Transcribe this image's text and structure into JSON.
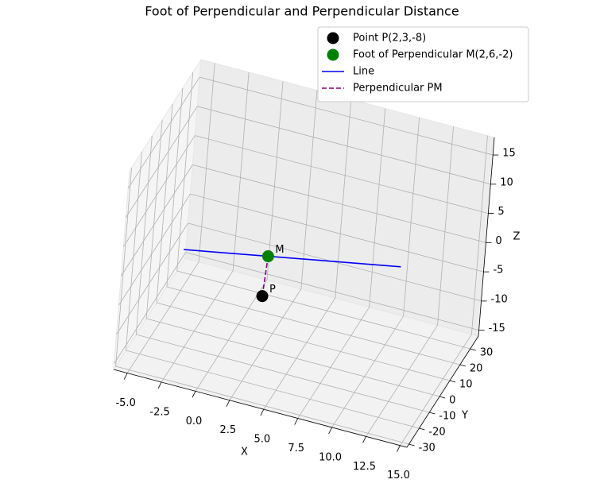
{
  "chart_data": {
    "type": "scatter3d",
    "title": "Foot of Perpendicular and Perpendicular Distance",
    "xlabel": "X",
    "ylabel": "Y",
    "zlabel": "Z",
    "xlim": [
      -6,
      15.5
    ],
    "ylim": [
      -32,
      38
    ],
    "zlim": [
      -16,
      18
    ],
    "xticks": [
      {
        "value": -5,
        "label": "-5.0"
      },
      {
        "value": -2.5,
        "label": "-2.5"
      },
      {
        "value": 0,
        "label": "0.0"
      },
      {
        "value": 2.5,
        "label": "2.5"
      },
      {
        "value": 5,
        "label": "5.0"
      },
      {
        "value": 7.5,
        "label": "7.5"
      },
      {
        "value": 10,
        "label": "10.0"
      },
      {
        "value": 12.5,
        "label": "12.5"
      },
      {
        "value": 15,
        "label": "15.0"
      }
    ],
    "yticks": [
      -30,
      -20,
      -10,
      0,
      10,
      20,
      30
    ],
    "zticks": [
      -15,
      -10,
      -5,
      0,
      5,
      10,
      15
    ],
    "grid": true,
    "legend": "upper right",
    "series": [
      {
        "name": "Point P(2,3,-8)",
        "kind": "point",
        "color": "#000000",
        "x": [
          2
        ],
        "y": [
          3
        ],
        "z": [
          -8
        ]
      },
      {
        "name": "Foot of Perpendicular M(2,6,-2)",
        "kind": "point",
        "color": "#008000",
        "x": [
          2
        ],
        "y": [
          6
        ],
        "z": [
          -2
        ]
      },
      {
        "name": "Line",
        "kind": "line",
        "color": "#0000ff",
        "x": [
          -5,
          13
        ],
        "y": [
          20,
          -16
        ],
        "z": [
          -9,
          9
        ]
      },
      {
        "name": "Perpendicular PM",
        "kind": "dashed",
        "color": "#800080",
        "x": [
          2,
          2
        ],
        "y": [
          3,
          6
        ],
        "z": [
          -8,
          -2
        ]
      }
    ],
    "annotations": [
      {
        "text": "P",
        "color": "#000000",
        "x": 2,
        "y": 3,
        "z": -8
      },
      {
        "text": "M",
        "color": "#008000",
        "x": 2,
        "y": 6,
        "z": -2
      }
    ]
  }
}
